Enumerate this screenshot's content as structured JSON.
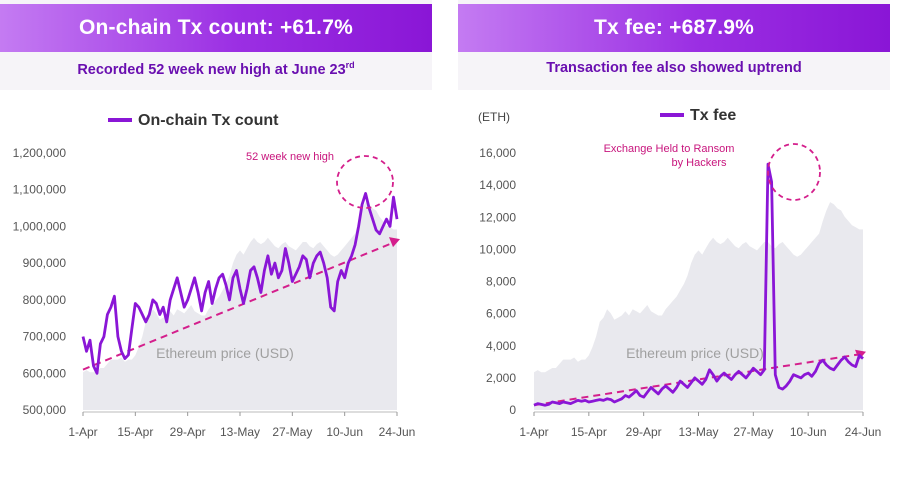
{
  "left_panel": {
    "banner": "On-chain Tx count: +61.7%",
    "subtitle": "Recorded 52 week new high at June 23",
    "subtitle_sup": "rd"
  },
  "right_panel": {
    "banner": "Tx fee: +687.9%",
    "subtitle": "Transaction fee also showed uptrend"
  },
  "colors": {
    "line": "#8a16d6",
    "trend": "#d41f8c",
    "price_area": "#e9e9ee",
    "banner": "#9b2fe3"
  },
  "chart_data": [
    {
      "type": "line",
      "legend": "On-chain Tx count",
      "legend_position": "top-center",
      "background_series_label": "Ethereum price (USD)",
      "annotation": "52 week new high",
      "x_ticks": [
        "1-Apr",
        "15-Apr",
        "29-Apr",
        "13-May",
        "27-May",
        "10-Jun",
        "24-Jun"
      ],
      "y_ticks": [
        "500,000",
        "600,000",
        "700,000",
        "800,000",
        "900,000",
        "1,000,000",
        "1,100,000",
        "1,200,000"
      ],
      "ylim": [
        500000,
        1200000
      ],
      "series": [
        {
          "name": "On-chain Tx count",
          "values": [
            700000,
            660000,
            690000,
            620000,
            600000,
            680000,
            700000,
            760000,
            780000,
            810000,
            700000,
            660000,
            640000,
            650000,
            720000,
            790000,
            780000,
            760000,
            740000,
            760000,
            800000,
            790000,
            760000,
            780000,
            740000,
            800000,
            830000,
            860000,
            820000,
            780000,
            800000,
            830000,
            860000,
            820000,
            770000,
            820000,
            850000,
            790000,
            830000,
            860000,
            870000,
            840000,
            800000,
            860000,
            880000,
            830000,
            790000,
            830000,
            880000,
            890000,
            860000,
            820000,
            880000,
            920000,
            870000,
            900000,
            860000,
            880000,
            940000,
            900000,
            850000,
            870000,
            890000,
            920000,
            910000,
            860000,
            900000,
            920000,
            930000,
            900000,
            860000,
            780000,
            770000,
            850000,
            880000,
            860000,
            900000,
            920000,
            950000,
            1000000,
            1060000,
            1090000,
            1050000,
            1020000,
            990000,
            980000,
            1000000,
            1020000,
            1000000,
            1080000,
            1020000
          ]
        },
        {
          "name": "Ethereum price (USD)",
          "values": [
            0.18,
            0.19,
            0.18,
            0.18,
            0.19,
            0.2,
            0.2,
            0.22,
            0.24,
            0.24,
            0.24,
            0.25,
            0.23,
            0.24,
            0.24,
            0.26,
            0.3,
            0.35,
            0.42,
            0.44,
            0.48,
            0.46,
            0.43,
            0.44,
            0.45,
            0.47,
            0.45,
            0.48,
            0.47,
            0.46,
            0.48,
            0.5,
            0.47,
            0.46,
            0.45,
            0.45,
            0.48,
            0.5,
            0.52,
            0.54,
            0.57,
            0.6,
            0.64,
            0.7,
            0.74,
            0.76,
            0.74,
            0.77,
            0.8,
            0.82,
            0.8,
            0.79,
            0.8,
            0.82,
            0.8,
            0.78,
            0.77,
            0.79,
            0.8,
            0.78,
            0.77,
            0.76,
            0.78,
            0.8,
            0.8,
            0.78,
            0.77,
            0.79,
            0.8,
            0.78,
            0.76,
            0.74,
            0.73,
            0.74,
            0.76,
            0.78,
            0.8,
            0.82,
            0.84,
            0.9,
            0.95,
            0.99,
            0.98,
            0.96,
            0.95,
            0.92,
            0.9,
            0.88,
            0.87,
            0.86,
            0.86
          ]
        }
      ],
      "trendline": [
        610000,
        960000
      ]
    },
    {
      "type": "line",
      "legend": "Tx fee",
      "legend_position": "top-center",
      "unit_label": "(ETH)",
      "background_series_label": "Ethereum price (USD)",
      "annotation": [
        "Exchange Held to Ransom",
        "by Hackers"
      ],
      "x_ticks": [
        "1-Apr",
        "15-Apr",
        "29-Apr",
        "13-May",
        "27-May",
        "10-Jun",
        "24-Jun"
      ],
      "y_ticks": [
        "0",
        "2,000",
        "4,000",
        "6,000",
        "8,000",
        "10,000",
        "12,000",
        "14,000",
        "16,000"
      ],
      "ylim": [
        0,
        16000
      ],
      "series": [
        {
          "name": "Tx fee",
          "values": [
            300,
            400,
            350,
            300,
            350,
            500,
            450,
            400,
            500,
            450,
            400,
            500,
            600,
            550,
            600,
            500,
            550,
            600,
            650,
            600,
            700,
            650,
            500,
            600,
            700,
            900,
            800,
            1000,
            1200,
            900,
            800,
            1100,
            1400,
            1200,
            1000,
            1300,
            1500,
            1300,
            1100,
            1400,
            1800,
            1600,
            1400,
            1700,
            2000,
            1800,
            1600,
            1900,
            2500,
            2200,
            1800,
            2100,
            2300,
            2100,
            1900,
            2200,
            2400,
            2200,
            2000,
            2300,
            2600,
            2400,
            2200,
            2500,
            15300,
            14200,
            2200,
            1400,
            1300,
            1500,
            1800,
            2200,
            2100,
            2000,
            2200,
            2300,
            2100,
            2400,
            2900,
            3100,
            2800,
            2600,
            2500,
            2800,
            3100,
            3300,
            3000,
            2800,
            2700,
            3400,
            3200
          ]
        },
        {
          "name": "Ethereum price (USD)",
          "values": [
            0.18,
            0.19,
            0.18,
            0.18,
            0.19,
            0.2,
            0.2,
            0.22,
            0.24,
            0.24,
            0.24,
            0.25,
            0.23,
            0.24,
            0.24,
            0.26,
            0.3,
            0.35,
            0.42,
            0.44,
            0.48,
            0.46,
            0.43,
            0.44,
            0.45,
            0.47,
            0.45,
            0.48,
            0.47,
            0.46,
            0.48,
            0.5,
            0.47,
            0.46,
            0.45,
            0.45,
            0.48,
            0.5,
            0.52,
            0.54,
            0.57,
            0.6,
            0.64,
            0.7,
            0.74,
            0.76,
            0.74,
            0.77,
            0.8,
            0.82,
            0.8,
            0.79,
            0.8,
            0.82,
            0.8,
            0.78,
            0.77,
            0.79,
            0.8,
            0.78,
            0.77,
            0.76,
            0.78,
            0.8,
            0.8,
            0.78,
            0.77,
            0.79,
            0.8,
            0.78,
            0.76,
            0.74,
            0.73,
            0.74,
            0.76,
            0.78,
            0.8,
            0.82,
            0.84,
            0.9,
            0.95,
            0.99,
            0.98,
            0.96,
            0.95,
            0.92,
            0.9,
            0.88,
            0.87,
            0.86,
            0.86
          ]
        }
      ],
      "trendline": [
        300,
        3500
      ]
    }
  ]
}
